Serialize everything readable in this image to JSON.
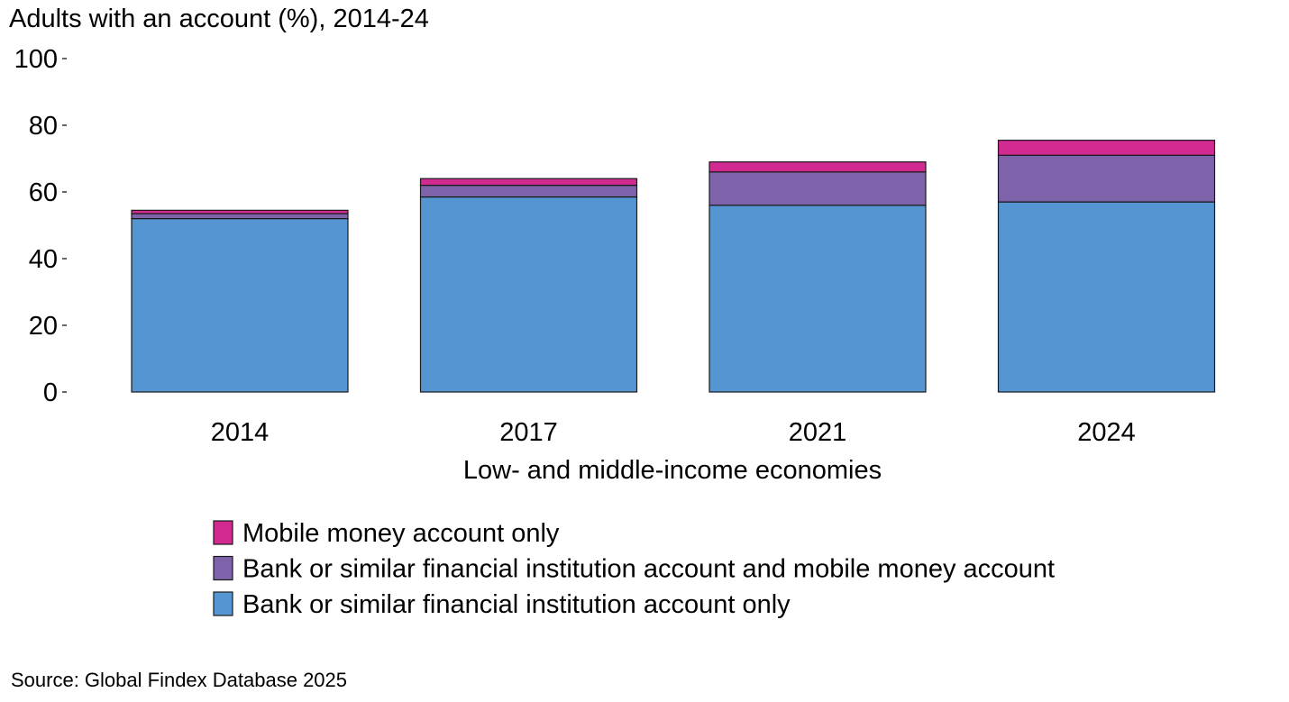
{
  "source": "Source: Global Findex Database 2025",
  "chart_data": {
    "type": "bar",
    "stacked": true,
    "title": "Adults with an account (%), 2014-24",
    "xlabel": "Low- and middle-income economies",
    "ylabel": "",
    "ylim": [
      0,
      100
    ],
    "yticks": [
      0,
      20,
      40,
      60,
      80,
      100
    ],
    "categories": [
      "2014",
      "2017",
      "2021",
      "2024"
    ],
    "legend_position": "bottom",
    "series": [
      {
        "name": "Bank or similar financial institution account only",
        "color": "#5596d2",
        "values": [
          52,
          58.5,
          56,
          57
        ]
      },
      {
        "name": "Bank or similar financial institution account and mobile money account",
        "color": "#7f63aa",
        "values": [
          1.5,
          3.5,
          10,
          14
        ]
      },
      {
        "name": "Mobile money account only",
        "color": "#d12a91",
        "values": [
          1,
          2,
          3,
          4.5
        ]
      }
    ]
  }
}
